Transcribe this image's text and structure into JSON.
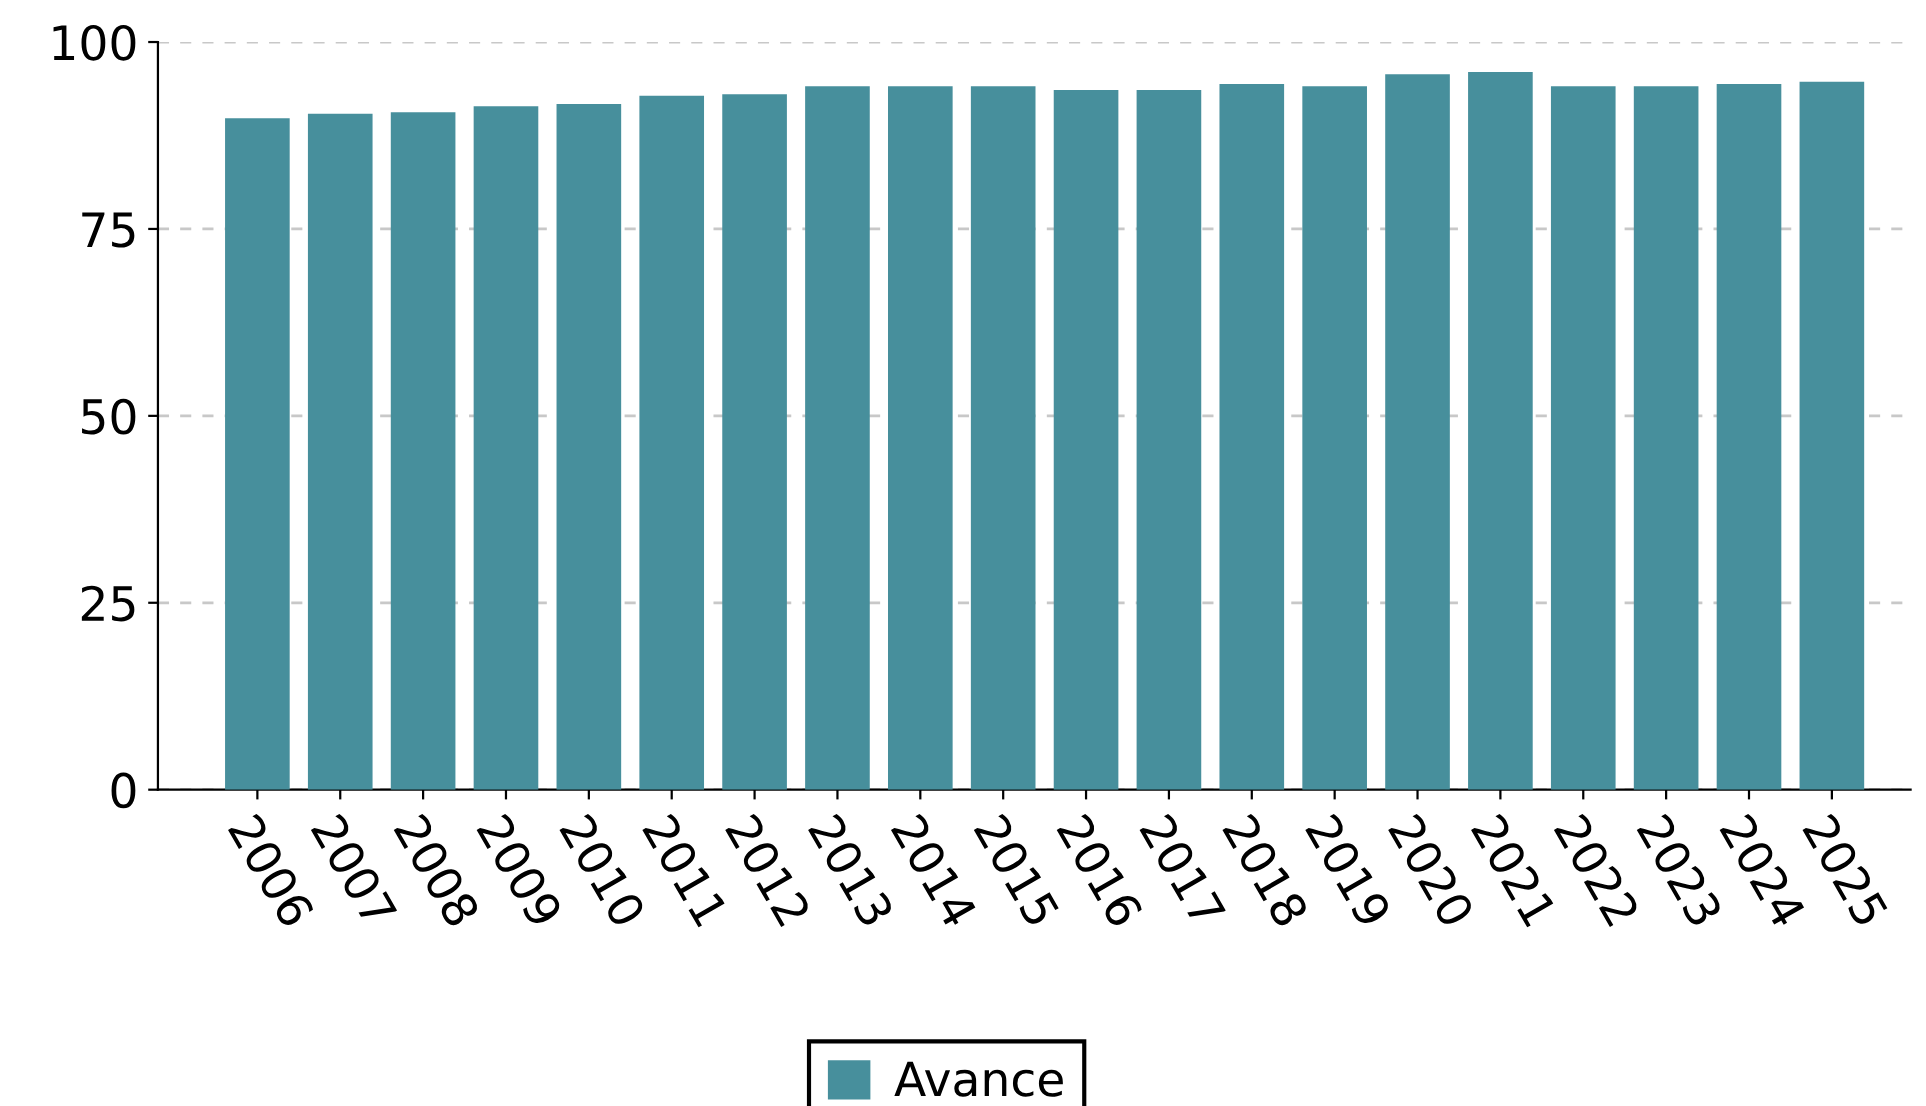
{
  "chart_data": {
    "type": "bar",
    "categories": [
      "2006",
      "2007",
      "2008",
      "2009",
      "2010",
      "2011",
      "2012",
      "2013",
      "2014",
      "2015",
      "2016",
      "2017",
      "2018",
      "2019",
      "2020",
      "2021",
      "2022",
      "2023",
      "2024",
      "2025"
    ],
    "series": [
      {
        "name": "Avance",
        "color": "#478f9c",
        "values": [
          89.8,
          90.4,
          90.6,
          91.4,
          91.7,
          92.8,
          93.0,
          94.1,
          94.1,
          94.1,
          93.6,
          93.6,
          94.4,
          94.1,
          95.7,
          96.0,
          94.1,
          94.1,
          94.4,
          94.7
        ]
      }
    ],
    "ylim": [
      0,
      100
    ],
    "yticks": [
      0,
      25,
      50,
      75,
      100
    ],
    "grid": "y",
    "legend": "bottom"
  }
}
